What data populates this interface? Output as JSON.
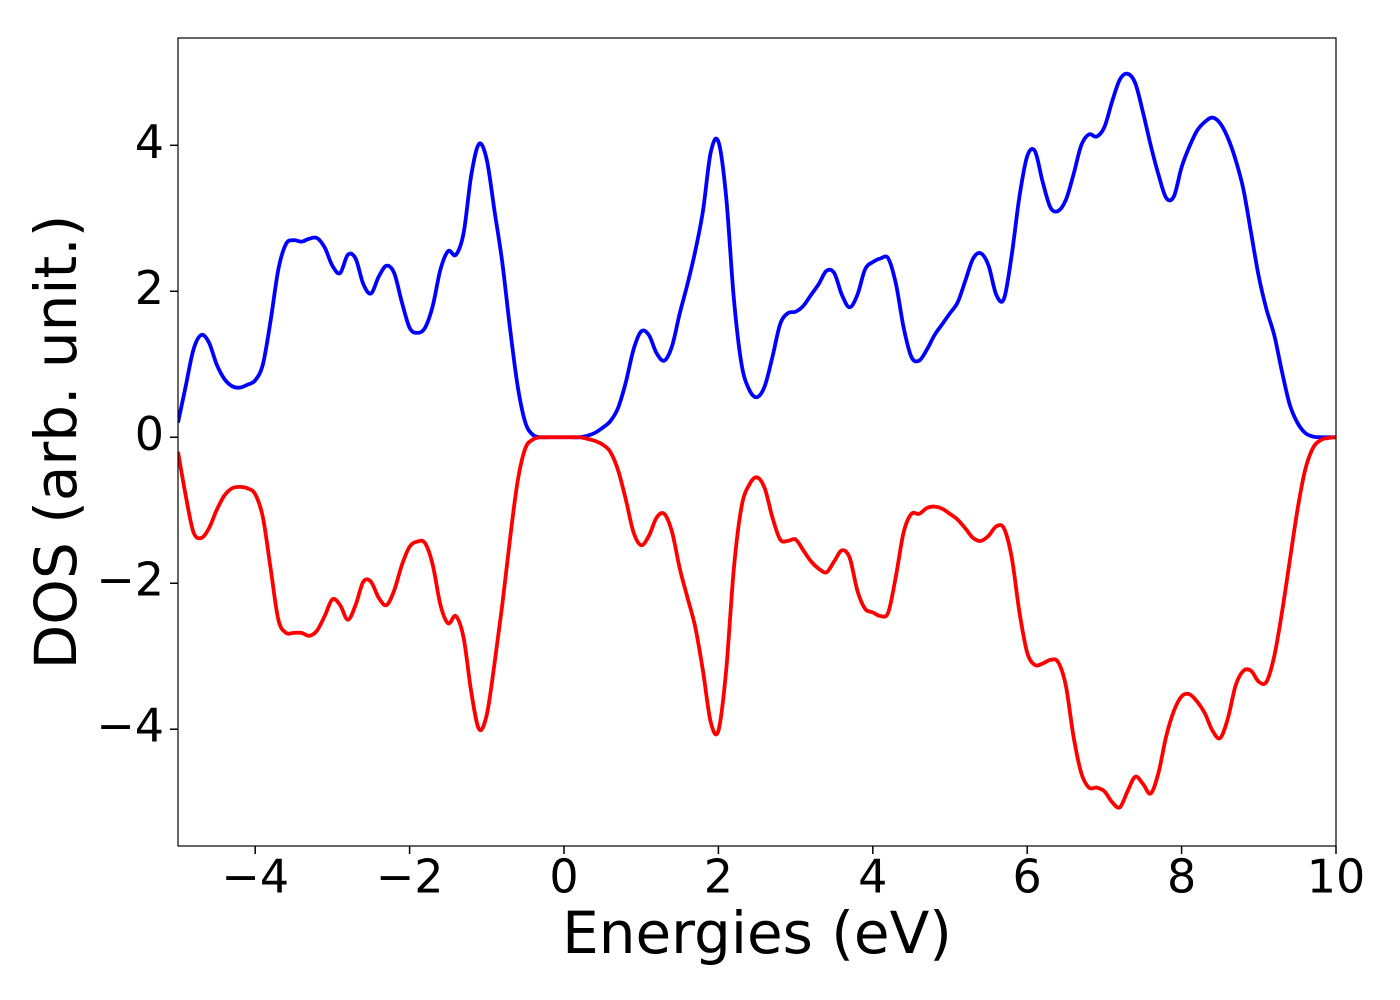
{
  "chart_data": {
    "type": "line",
    "xlabel": "Energies (eV)",
    "ylabel": "DOS (arb. unit.)",
    "x": [
      -5,
      -4.9,
      -4.8,
      -4.7,
      -4.6,
      -4.5,
      -4.4,
      -4.3,
      -4.2,
      -4.1,
      -4,
      -3.9,
      -3.8,
      -3.7,
      -3.6,
      -3.5,
      -3.4,
      -3.3,
      -3.2,
      -3.1,
      -3,
      -2.9,
      -2.8,
      -2.7,
      -2.6,
      -2.5,
      -2.4,
      -2.3,
      -2.2,
      -2.1,
      -2,
      -1.9,
      -1.8,
      -1.7,
      -1.6,
      -1.5,
      -1.4,
      -1.3,
      -1.2,
      -1.1,
      -1,
      -0.9,
      -0.8,
      -0.7,
      -0.6,
      -0.5,
      -0.4,
      -0.3,
      -0.2,
      -0.1,
      0,
      0.1,
      0.2,
      0.3,
      0.4,
      0.5,
      0.6,
      0.7,
      0.8,
      0.9,
      1,
      1.1,
      1.2,
      1.3,
      1.4,
      1.5,
      1.6,
      1.7,
      1.8,
      1.9,
      2,
      2.1,
      2.2,
      2.3,
      2.4,
      2.5,
      2.6,
      2.7,
      2.8,
      2.9,
      3,
      3.1,
      3.2,
      3.3,
      3.4,
      3.5,
      3.6,
      3.7,
      3.8,
      3.9,
      4,
      4.1,
      4.2,
      4.3,
      4.4,
      4.5,
      4.6,
      4.7,
      4.8,
      4.9,
      5,
      5.1,
      5.2,
      5.3,
      5.4,
      5.5,
      5.6,
      5.7,
      5.8,
      5.9,
      6,
      6.1,
      6.2,
      6.3,
      6.4,
      6.5,
      6.6,
      6.7,
      6.8,
      6.9,
      7,
      7.1,
      7.2,
      7.3,
      7.4,
      7.5,
      7.6,
      7.7,
      7.8,
      7.9,
      8,
      8.1,
      8.2,
      8.3,
      8.4,
      8.5,
      8.6,
      8.7,
      8.8,
      8.9,
      9,
      9.1,
      9.2,
      9.3,
      9.4,
      9.5,
      9.6,
      9.7,
      9.8,
      9.9,
      10
    ],
    "series": [
      {
        "color": "#0000ff",
        "values": [
          0.2,
          0.7,
          1.2,
          1.4,
          1.3,
          1.0,
          0.8,
          0.7,
          0.68,
          0.72,
          0.78,
          1.0,
          1.6,
          2.3,
          2.65,
          2.7,
          2.68,
          2.72,
          2.73,
          2.6,
          2.35,
          2.25,
          2.5,
          2.45,
          2.1,
          1.97,
          2.2,
          2.35,
          2.25,
          1.85,
          1.5,
          1.43,
          1.5,
          1.8,
          2.3,
          2.55,
          2.5,
          2.8,
          3.6,
          4.02,
          3.8,
          3.1,
          2.4,
          1.5,
          0.7,
          0.2,
          0.03,
          0,
          0,
          0,
          0,
          0,
          0,
          0.02,
          0.06,
          0.13,
          0.22,
          0.4,
          0.75,
          1.2,
          1.45,
          1.4,
          1.15,
          1.05,
          1.25,
          1.7,
          2.1,
          2.55,
          3.1,
          3.9,
          4.05,
          3.3,
          1.9,
          1.0,
          0.65,
          0.55,
          0.7,
          1.1,
          1.55,
          1.7,
          1.72,
          1.8,
          1.95,
          2.1,
          2.28,
          2.25,
          1.95,
          1.78,
          1.95,
          2.3,
          2.4,
          2.45,
          2.45,
          2.1,
          1.5,
          1.1,
          1.05,
          1.2,
          1.4,
          1.55,
          1.7,
          1.85,
          2.15,
          2.45,
          2.52,
          2.35,
          1.95,
          1.9,
          2.5,
          3.3,
          3.85,
          3.92,
          3.5,
          3.15,
          3.1,
          3.25,
          3.6,
          4.0,
          4.15,
          4.12,
          4.25,
          4.6,
          4.9,
          4.98,
          4.85,
          4.45,
          4.0,
          3.6,
          3.28,
          3.3,
          3.7,
          3.98,
          4.2,
          4.32,
          4.38,
          4.3,
          4.1,
          3.8,
          3.4,
          2.8,
          2.2,
          1.75,
          1.4,
          0.9,
          0.45,
          0.2,
          0.06,
          0.01,
          0,
          0,
          0
        ]
      },
      {
        "color": "#ff0000",
        "values": [
          -0.2,
          -0.8,
          -1.3,
          -1.38,
          -1.25,
          -1.0,
          -0.8,
          -0.7,
          -0.68,
          -0.7,
          -0.78,
          -1.1,
          -1.8,
          -2.5,
          -2.68,
          -2.68,
          -2.68,
          -2.72,
          -2.65,
          -2.45,
          -2.22,
          -2.3,
          -2.5,
          -2.3,
          -1.98,
          -1.98,
          -2.2,
          -2.3,
          -2.1,
          -1.75,
          -1.5,
          -1.43,
          -1.45,
          -1.75,
          -2.3,
          -2.55,
          -2.45,
          -2.75,
          -3.5,
          -4.0,
          -3.8,
          -3.1,
          -2.3,
          -1.4,
          -0.6,
          -0.15,
          -0.03,
          0,
          0,
          0,
          0,
          0,
          0,
          -0.02,
          -0.05,
          -0.1,
          -0.2,
          -0.45,
          -0.85,
          -1.3,
          -1.48,
          -1.35,
          -1.1,
          -1.05,
          -1.3,
          -1.8,
          -2.2,
          -2.6,
          -3.2,
          -3.9,
          -4.02,
          -3.2,
          -1.8,
          -0.95,
          -0.65,
          -0.55,
          -0.7,
          -1.1,
          -1.4,
          -1.42,
          -1.4,
          -1.55,
          -1.7,
          -1.8,
          -1.85,
          -1.7,
          -1.55,
          -1.65,
          -2.1,
          -2.35,
          -2.4,
          -2.45,
          -2.4,
          -1.9,
          -1.3,
          -1.05,
          -1.05,
          -0.97,
          -0.95,
          -0.98,
          -1.05,
          -1.13,
          -1.25,
          -1.38,
          -1.42,
          -1.35,
          -1.22,
          -1.25,
          -1.65,
          -2.4,
          -2.95,
          -3.12,
          -3.1,
          -3.05,
          -3.08,
          -3.4,
          -4.1,
          -4.6,
          -4.8,
          -4.8,
          -4.85,
          -5.0,
          -5.07,
          -4.85,
          -4.65,
          -4.75,
          -4.88,
          -4.6,
          -4.1,
          -3.75,
          -3.55,
          -3.52,
          -3.62,
          -3.78,
          -4.02,
          -4.12,
          -3.85,
          -3.4,
          -3.2,
          -3.2,
          -3.35,
          -3.35,
          -3.0,
          -2.4,
          -1.7,
          -1.0,
          -0.45,
          -0.15,
          -0.04,
          -0.01,
          0
        ]
      }
    ],
    "xlim": [
      -5,
      10
    ],
    "xticks": [
      {
        "value": -4,
        "label": "−4"
      },
      {
        "value": -2,
        "label": "−2"
      },
      0,
      2,
      4,
      6,
      8,
      10
    ],
    "ylim": [
      -5.6,
      5.47
    ],
    "yticks": [
      {
        "value": -4,
        "label": "−4"
      },
      {
        "value": -2,
        "label": "−2"
      },
      0,
      2,
      4
    ]
  }
}
